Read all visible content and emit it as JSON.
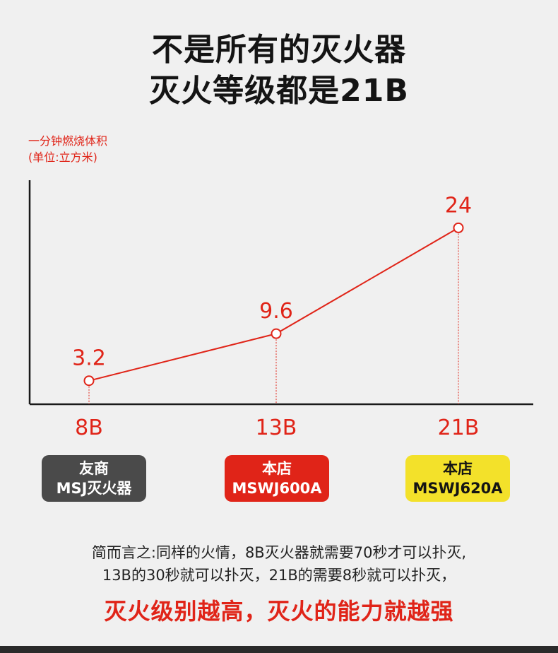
{
  "header": {
    "title_line1": "不是所有的灭火器",
    "title_line2": "灭火等级都是21B"
  },
  "chart_data": {
    "type": "line",
    "ylabel_line1": "一分钟燃烧体积",
    "ylabel_line2": "(单位:立方米)",
    "categories": [
      "8B",
      "13B",
      "21B"
    ],
    "series": [
      {
        "values": [
          3.2,
          9.6,
          24
        ]
      }
    ],
    "data_labels": [
      "3.2",
      "9.6",
      "24"
    ],
    "ylim": [
      0,
      30
    ],
    "grid": false,
    "color": "#e02418"
  },
  "badges": [
    {
      "line1": "友商",
      "line2": "MSJ灭火器"
    },
    {
      "line1": "本店",
      "line2": "MSWJ600A"
    },
    {
      "line1": "本店",
      "line2": "MSWJ620A"
    }
  ],
  "summary": {
    "line1": "简而言之:同样的火情，8B灭火器就需要70秒才可以扑灭,",
    "line2": "13B的30秒就可以扑灭，21B的需要8秒就可以扑灭，",
    "conclusion": "灭火级别越高，灭火的能力就越强"
  }
}
